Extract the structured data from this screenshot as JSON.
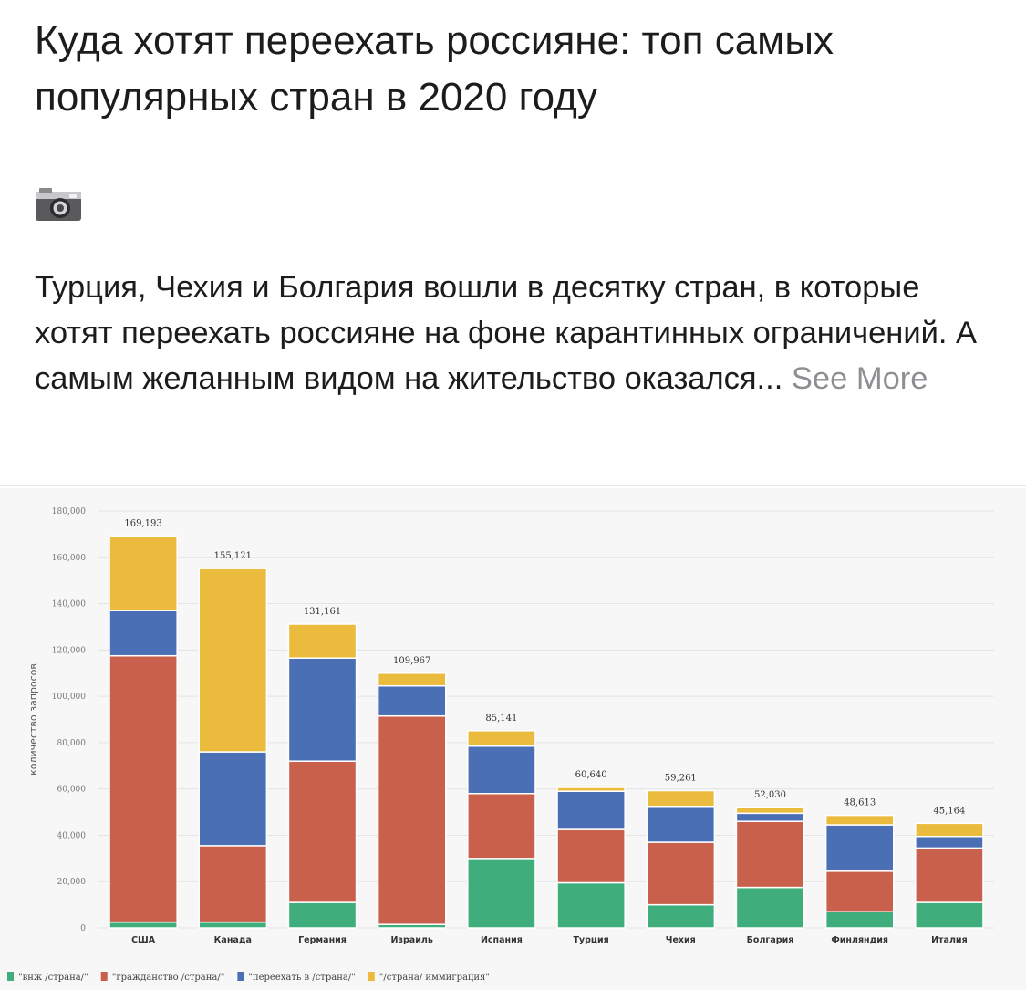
{
  "post": {
    "title": "Куда хотят переехать россияне: топ самых популярных стран в 2020 году",
    "icon": "camera-icon",
    "text": "Турция, Чехия и Болгария вошли в десятку стран, в которые хотят переехать россияне на фоне карантинных ограничений. А самым желанным видом на жительство оказался...",
    "see_more": "See More"
  },
  "chart_data": {
    "type": "bar",
    "stacked": true,
    "ylabel": "количество запросов",
    "ylim": [
      0,
      180000
    ],
    "yticks": [
      "0",
      "20,000",
      "40,000",
      "60,000",
      "80,000",
      "100,000",
      "120,000",
      "140,000",
      "160,000",
      "180,000"
    ],
    "categories": [
      "США",
      "Канада",
      "Германия",
      "Израиль",
      "Испания",
      "Турция",
      "Чехия",
      "Болгария",
      "Финляндия",
      "Италия"
    ],
    "totals": [
      "169,193",
      "155,121",
      "131,161",
      "109,967",
      "85,141",
      "60,640",
      "59,261",
      "52,030",
      "48,613",
      "45,164"
    ],
    "series": [
      {
        "name": "\"внж /страна/\"",
        "color": "#3fae7c",
        "values": [
          2500,
          2500,
          11000,
          1500,
          30000,
          19500,
          10000,
          17500,
          7000,
          11000
        ]
      },
      {
        "name": "\"гражданство /страна/\"",
        "color": "#c9604c",
        "values": [
          115000,
          33000,
          61000,
          90000,
          28000,
          23000,
          27000,
          28500,
          17500,
          23500
        ]
      },
      {
        "name": "\"переехать в /страна/\"",
        "color": "#4a6fb5",
        "values": [
          19500,
          40500,
          44500,
          13000,
          20500,
          16500,
          15500,
          3500,
          20000,
          5000
        ]
      },
      {
        "name": "\"/страна/ иммиграция\"",
        "color": "#eabb3d",
        "values": [
          32193,
          79121,
          14661,
          5467,
          6641,
          1640,
          6761,
          2530,
          4113,
          5664
        ]
      }
    ],
    "grid": true,
    "legend_position": "bottom"
  }
}
